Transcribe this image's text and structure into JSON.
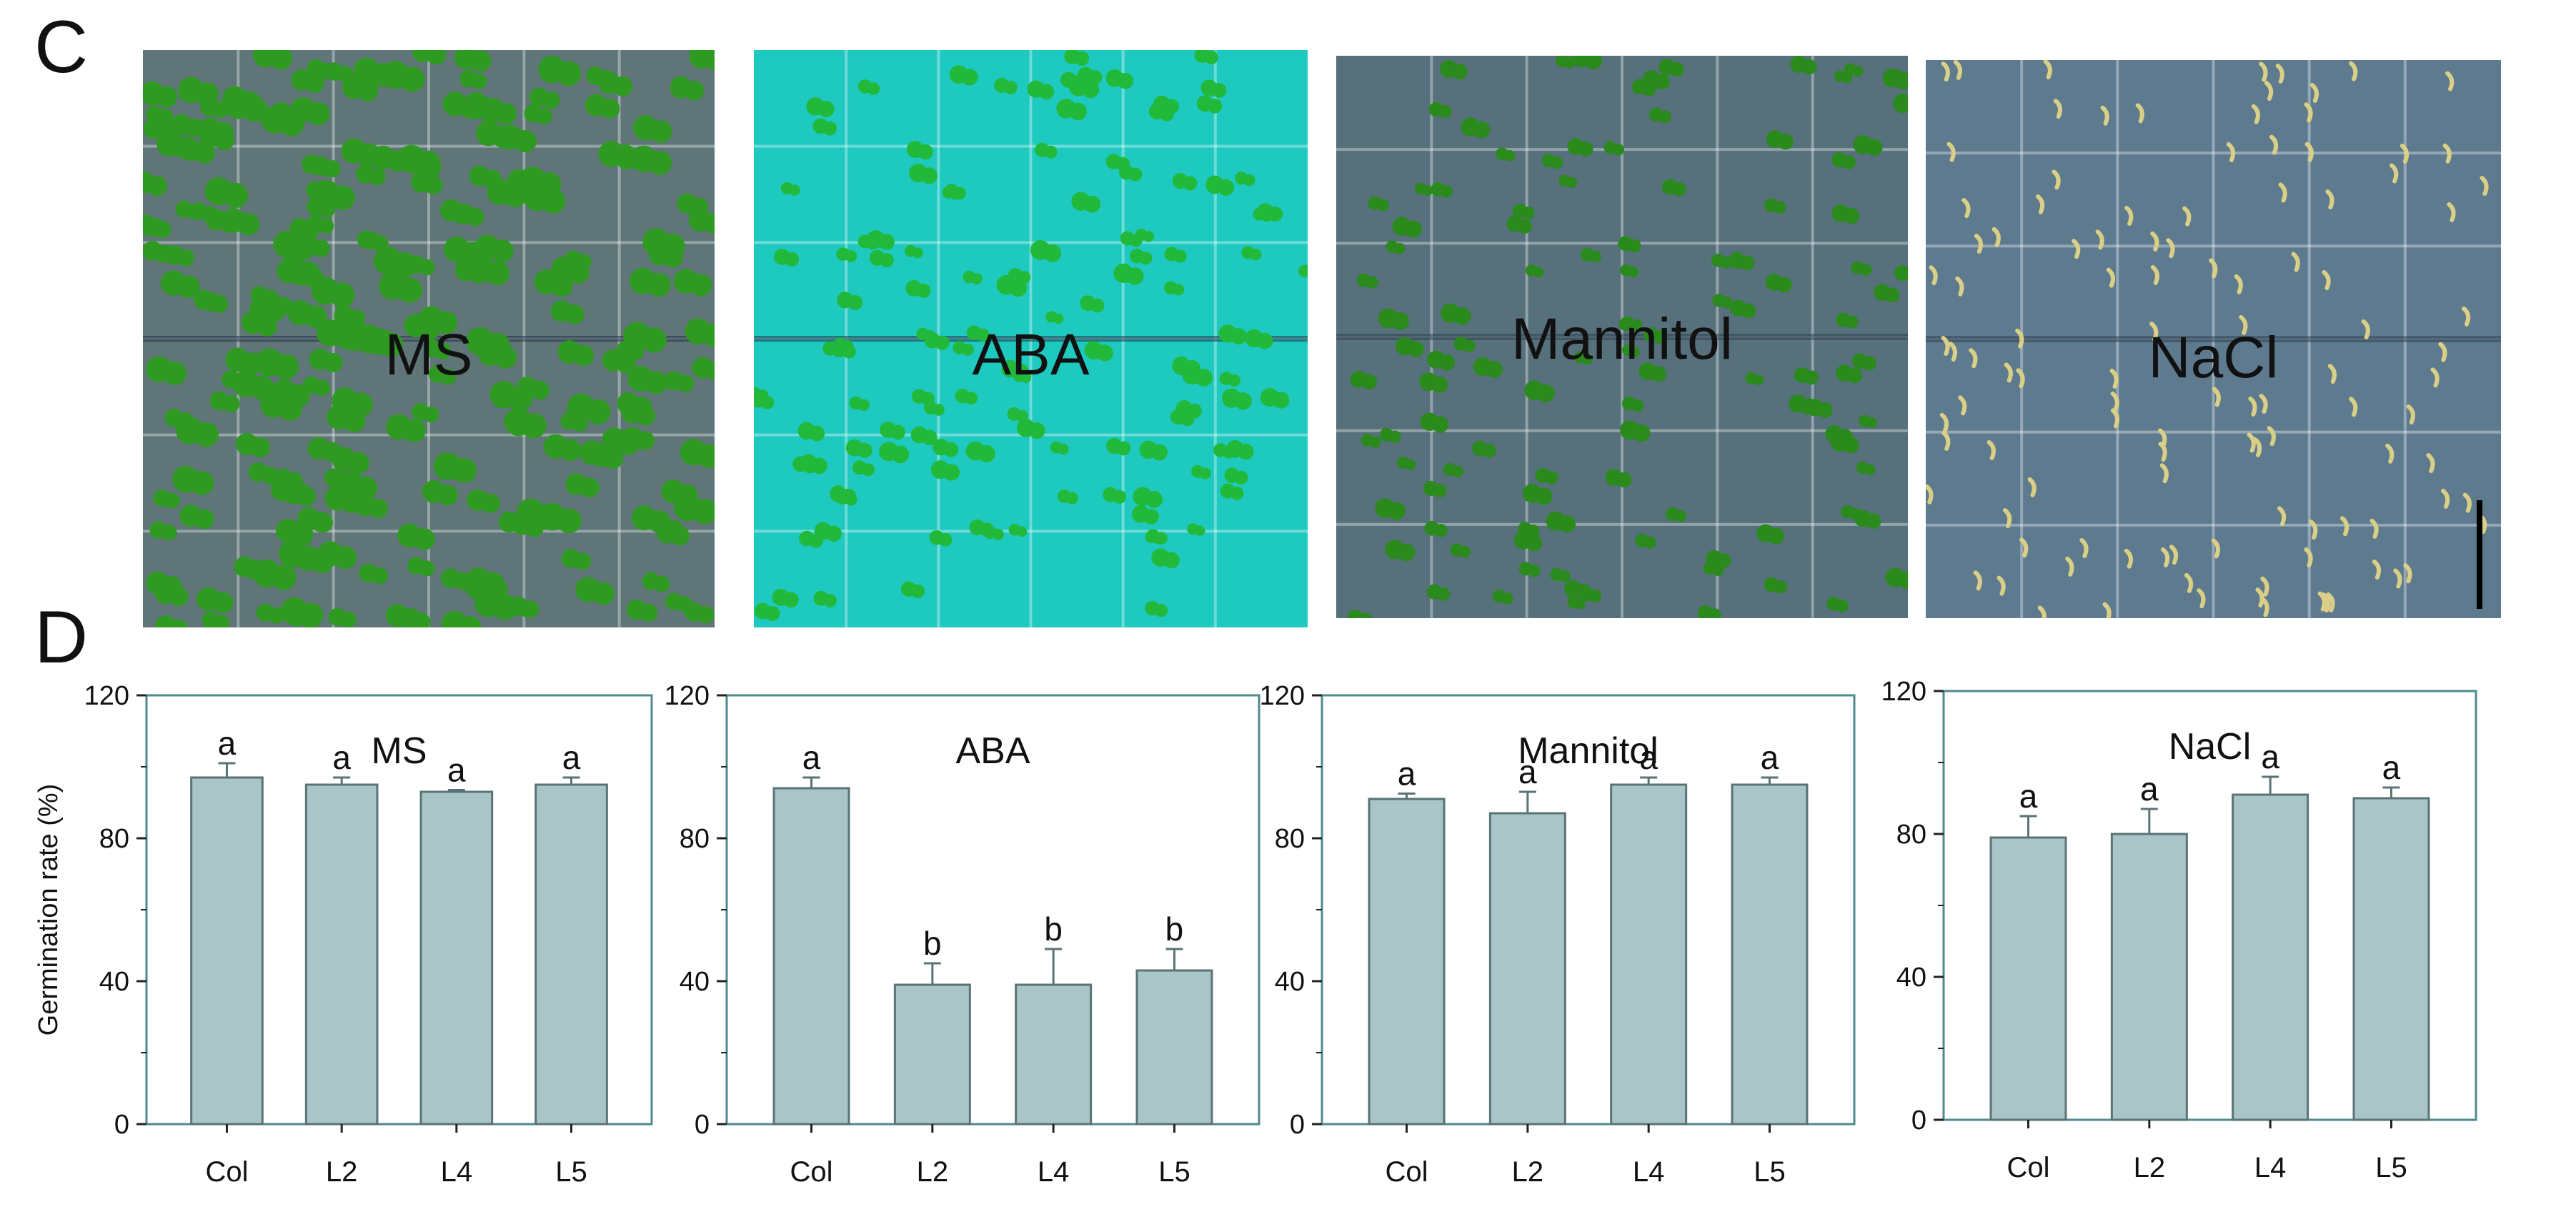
{
  "panel_c": {
    "letter": "C",
    "photos": [
      {
        "label": "MS",
        "background": "#5f7577",
        "plant": "#2f9a22"
      },
      {
        "label": "ABA",
        "background": "#1ec9c0",
        "plant": "#22b83a"
      },
      {
        "label": "Mannitol",
        "background": "#56707c",
        "plant": "#2a8a1c"
      },
      {
        "label": "NaCl",
        "background": "#5e7a8e",
        "plant": "#d9cf86"
      }
    ]
  },
  "panel_d": {
    "letter": "D"
  },
  "colors": {
    "bar_fill": "#a9c5c7",
    "bar_stroke": "#5a7374",
    "frame": "#4f8a8d"
  },
  "chart_data": [
    {
      "type": "bar",
      "title": "MS",
      "ylabel": "Germination rate (%)",
      "ylim": [
        0,
        120
      ],
      "yticks": [
        0,
        40,
        80,
        120
      ],
      "categories": [
        "Col",
        "L2",
        "L4",
        "L5"
      ],
      "values": [
        97,
        95,
        93,
        95
      ],
      "errors": [
        4,
        2,
        0.5,
        2
      ],
      "letters": [
        "a",
        "a",
        "a",
        "a"
      ]
    },
    {
      "type": "bar",
      "title": "ABA",
      "ylabel": "",
      "ylim": [
        0,
        120
      ],
      "yticks": [
        0,
        40,
        80,
        120
      ],
      "categories": [
        "Col",
        "L2",
        "L4",
        "L5"
      ],
      "values": [
        94,
        39,
        39,
        43
      ],
      "errors": [
        3,
        6,
        10,
        6
      ],
      "letters": [
        "a",
        "b",
        "b",
        "b"
      ]
    },
    {
      "type": "bar",
      "title": "Mannitol",
      "ylabel": "",
      "ylim": [
        0,
        120
      ],
      "yticks": [
        0,
        40,
        80,
        120
      ],
      "categories": [
        "Col",
        "L2",
        "L4",
        "L5"
      ],
      "values": [
        91,
        87,
        95,
        95
      ],
      "errors": [
        1.5,
        6,
        2,
        2
      ],
      "letters": [
        "a",
        "a",
        "a",
        "a"
      ]
    },
    {
      "type": "bar",
      "title": "NaCl",
      "ylabel": "",
      "ylim": [
        0,
        120
      ],
      "yticks": [
        0,
        40,
        80,
        120
      ],
      "categories": [
        "Col",
        "L2",
        "L4",
        "L5"
      ],
      "values": [
        79,
        80,
        91,
        90
      ],
      "errors": [
        6,
        7,
        5,
        3
      ],
      "letters": [
        "a",
        "a",
        "a",
        "a"
      ]
    }
  ]
}
